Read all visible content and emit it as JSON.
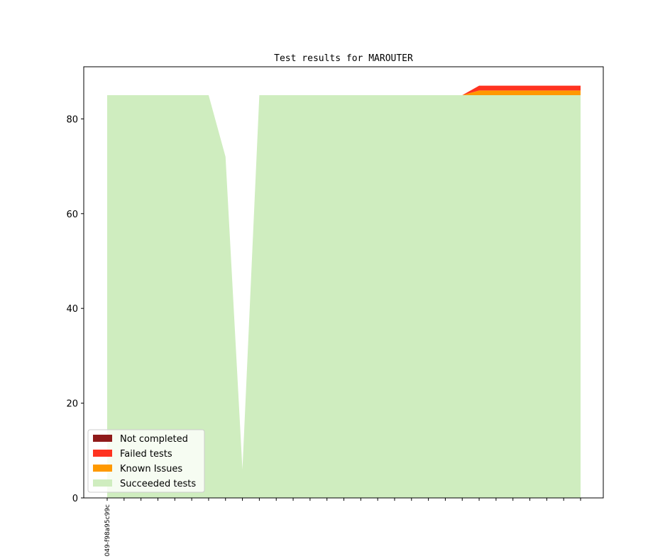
{
  "chart_data": {
    "type": "area",
    "title": "Test results for MAROUTER",
    "xlabel": "",
    "ylabel": "",
    "ylim": [
      0,
      91
    ],
    "yticks": [
      0,
      20,
      40,
      60,
      80
    ],
    "x_tick_labels": [
      "049-f98a95c99c"
    ],
    "x_count": 29,
    "stacked": true,
    "grid": false,
    "legend_position": "lower-left",
    "series": [
      {
        "name": "Succeeded tests",
        "color": "#cfedbf",
        "values": [
          85,
          85,
          85,
          85,
          85,
          85,
          85,
          72,
          6,
          85,
          85,
          85,
          85,
          85,
          85,
          85,
          85,
          85,
          85,
          85,
          85,
          85,
          85,
          85,
          85,
          85,
          85,
          85,
          85
        ]
      },
      {
        "name": "Known Issues",
        "color": "#ff9900",
        "values": [
          0,
          0,
          0,
          0,
          0,
          0,
          0,
          0,
          0,
          0,
          0,
          0,
          0,
          0,
          0,
          0,
          0,
          0,
          0,
          0,
          0,
          0,
          1,
          1,
          1,
          1,
          1,
          1,
          1
        ]
      },
      {
        "name": "Failed tests",
        "color": "#ff3320",
        "values": [
          0,
          0,
          0,
          0,
          0,
          0,
          0,
          0,
          0,
          0,
          0,
          0,
          0,
          0,
          0,
          0,
          0,
          0,
          0,
          0,
          0,
          0,
          1,
          1,
          1,
          1,
          1,
          1,
          1
        ]
      },
      {
        "name": "Not completed",
        "color": "#8f1a1a",
        "values": [
          0,
          0,
          0,
          0,
          0,
          0,
          0,
          0,
          0,
          0,
          0,
          0,
          0,
          0,
          0,
          0,
          0,
          0,
          0,
          0,
          0,
          0,
          0,
          0,
          0,
          0,
          0,
          0,
          0
        ]
      }
    ],
    "legend_order": [
      "Not completed",
      "Failed tests",
      "Known Issues",
      "Succeeded tests"
    ]
  }
}
